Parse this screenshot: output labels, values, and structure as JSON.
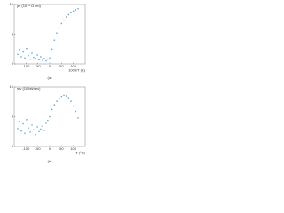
{
  "chart_data": [
    {
      "type": "scatter",
      "caption": "(a)",
      "xlabel": "1000/T (K)",
      "ylabel": "ρv (10⁻⁴ Ω cm)",
      "color": "#5aa9d8",
      "x": [
        -135,
        -128,
        -120,
        -112,
        -105,
        -98,
        -90,
        -82,
        -75,
        -68,
        -60,
        -52,
        -45,
        -38,
        -30,
        -22,
        -15,
        -8,
        0,
        10,
        20,
        30,
        40,
        50,
        60,
        70,
        80,
        90,
        100,
        110,
        120
      ],
      "values": [
        1.6,
        2.4,
        1.2,
        2.0,
        1.0,
        2.6,
        1.4,
        0.8,
        1.8,
        1.1,
        0.9,
        1.5,
        0.7,
        1.2,
        0.6,
        0.9,
        0.5,
        0.8,
        1.0,
        2.5,
        4.0,
        5.2,
        6.1,
        6.8,
        7.4,
        7.9,
        8.3,
        8.6,
        8.9,
        9.1,
        9.3
      ],
      "xlim": [
        -150,
        150
      ],
      "xticks": [
        -100,
        -50,
        0,
        50,
        100
      ],
      "ylim": [
        0,
        10
      ],
      "yticks": [
        0,
        5,
        10
      ]
    },
    {
      "type": "scatter",
      "caption": "(b)",
      "xlabel": "T (°C)",
      "ylabel": "mv (10 bit/dec)",
      "color": "#5aa9d8",
      "x": [
        -135,
        -128,
        -120,
        -112,
        -105,
        -98,
        -90,
        -82,
        -75,
        -68,
        -60,
        -52,
        -45,
        -38,
        -30,
        -22,
        -15,
        -8,
        0,
        10,
        20,
        30,
        40,
        50,
        60,
        70,
        80,
        90,
        100,
        110,
        120
      ],
      "values": [
        3.0,
        4.2,
        2.6,
        3.8,
        2.2,
        4.5,
        3.1,
        2.4,
        3.6,
        2.8,
        2.0,
        3.3,
        2.5,
        2.9,
        3.4,
        2.7,
        3.9,
        4.4,
        5.0,
        6.2,
        7.0,
        7.6,
        8.1,
        8.4,
        8.6,
        8.5,
        8.2,
        7.6,
        6.8,
        5.9,
        4.8
      ],
      "xlim": [
        -150,
        150
      ],
      "xticks": [
        -100,
        -50,
        0,
        50,
        100
      ],
      "ylim": [
        0,
        10
      ],
      "yticks": [
        0,
        5,
        10
      ]
    }
  ]
}
